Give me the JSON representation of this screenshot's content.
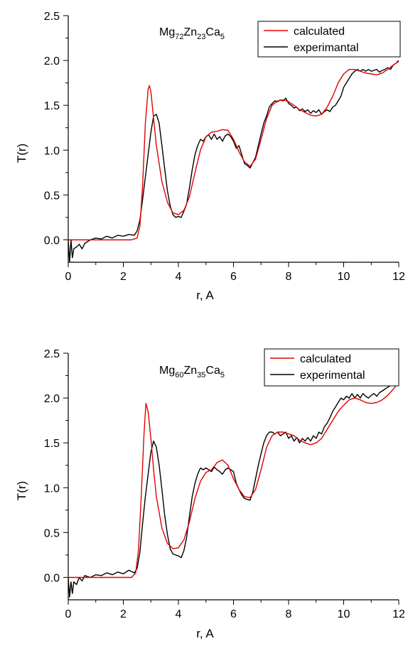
{
  "chart_data": [
    {
      "type": "line",
      "title": "",
      "annotation": {
        "base": "Mg",
        "sub1": "72",
        "el2": "Zn",
        "sub2": "23",
        "el3": "Ca",
        "sub3": "5"
      },
      "xlabel": "r, A",
      "ylabel": "T(r)",
      "xlim": [
        0,
        12
      ],
      "ylim": [
        -0.25,
        2.5
      ],
      "xticks": [
        0,
        2,
        4,
        6,
        8,
        10,
        12
      ],
      "yticks": [
        0.0,
        0.5,
        1.0,
        1.5,
        2.0,
        2.5
      ],
      "ytick_labels": [
        "0.0",
        "0.5",
        "1.0",
        "1.5",
        "2.0",
        "2.5"
      ],
      "legend_position": "top-right",
      "grid": false,
      "series": [
        {
          "name": "calculated",
          "color": "#e00000",
          "x": [
            0,
            2.3,
            2.5,
            2.6,
            2.7,
            2.8,
            2.9,
            2.95,
            3.0,
            3.1,
            3.2,
            3.4,
            3.6,
            3.8,
            4.0,
            4.2,
            4.4,
            4.6,
            4.8,
            5.0,
            5.2,
            5.4,
            5.6,
            5.8,
            6.0,
            6.2,
            6.4,
            6.6,
            6.8,
            7.0,
            7.2,
            7.4,
            7.6,
            7.8,
            8.0,
            8.2,
            8.4,
            8.6,
            8.8,
            9.0,
            9.2,
            9.4,
            9.6,
            9.8,
            10.0,
            10.2,
            10.4,
            10.6,
            10.8,
            11.0,
            11.2,
            11.4,
            11.6,
            11.8,
            12.0
          ],
          "y": [
            0.0,
            0.0,
            0.02,
            0.15,
            0.6,
            1.3,
            1.68,
            1.72,
            1.65,
            1.35,
            1.05,
            0.65,
            0.42,
            0.3,
            0.28,
            0.33,
            0.48,
            0.75,
            1.0,
            1.15,
            1.2,
            1.21,
            1.23,
            1.22,
            1.12,
            0.98,
            0.87,
            0.82,
            0.9,
            1.12,
            1.35,
            1.5,
            1.55,
            1.56,
            1.54,
            1.5,
            1.45,
            1.42,
            1.39,
            1.38,
            1.4,
            1.48,
            1.6,
            1.75,
            1.85,
            1.9,
            1.9,
            1.88,
            1.86,
            1.85,
            1.84,
            1.86,
            1.9,
            1.95,
            1.99
          ]
        },
        {
          "name": "experimantal",
          "color": "#000000",
          "x": [
            0,
            0.05,
            0.1,
            0.15,
            0.2,
            0.3,
            0.4,
            0.5,
            0.6,
            0.8,
            1.0,
            1.2,
            1.4,
            1.6,
            1.8,
            2.0,
            2.2,
            2.4,
            2.5,
            2.6,
            2.7,
            2.8,
            2.9,
            3.0,
            3.1,
            3.2,
            3.3,
            3.4,
            3.5,
            3.6,
            3.7,
            3.8,
            3.9,
            4.0,
            4.1,
            4.2,
            4.3,
            4.4,
            4.5,
            4.6,
            4.7,
            4.8,
            4.9,
            5.0,
            5.1,
            5.2,
            5.3,
            5.4,
            5.5,
            5.6,
            5.7,
            5.8,
            5.9,
            6.0,
            6.1,
            6.2,
            6.3,
            6.4,
            6.5,
            6.6,
            6.7,
            6.8,
            6.9,
            7.0,
            7.1,
            7.2,
            7.3,
            7.4,
            7.5,
            7.6,
            7.7,
            7.8,
            7.9,
            8.0,
            8.1,
            8.2,
            8.3,
            8.4,
            8.5,
            8.6,
            8.7,
            8.8,
            8.9,
            9.0,
            9.1,
            9.2,
            9.3,
            9.4,
            9.5,
            9.6,
            9.7,
            9.8,
            9.9,
            10.0,
            10.1,
            10.2,
            10.3,
            10.4,
            10.5,
            10.6,
            10.7,
            10.8,
            10.9,
            11.0,
            11.1,
            11.2,
            11.3,
            11.4,
            11.5,
            11.6,
            11.7,
            11.8,
            11.9,
            12.0
          ],
          "y": [
            0.0,
            -0.25,
            0.0,
            -0.2,
            -0.1,
            -0.08,
            -0.05,
            -0.1,
            -0.04,
            0.0,
            0.02,
            0.01,
            0.04,
            0.02,
            0.05,
            0.04,
            0.06,
            0.05,
            0.1,
            0.22,
            0.45,
            0.7,
            0.95,
            1.2,
            1.38,
            1.4,
            1.3,
            1.05,
            0.8,
            0.55,
            0.38,
            0.28,
            0.25,
            0.26,
            0.25,
            0.32,
            0.4,
            0.58,
            0.78,
            0.95,
            1.05,
            1.12,
            1.1,
            1.15,
            1.17,
            1.12,
            1.18,
            1.12,
            1.15,
            1.1,
            1.16,
            1.18,
            1.15,
            1.1,
            1.02,
            1.05,
            0.95,
            0.85,
            0.83,
            0.8,
            0.86,
            0.92,
            1.05,
            1.18,
            1.3,
            1.38,
            1.48,
            1.52,
            1.55,
            1.54,
            1.56,
            1.55,
            1.58,
            1.52,
            1.5,
            1.47,
            1.48,
            1.44,
            1.46,
            1.43,
            1.45,
            1.41,
            1.44,
            1.42,
            1.45,
            1.4,
            1.43,
            1.45,
            1.43,
            1.48,
            1.5,
            1.55,
            1.6,
            1.7,
            1.75,
            1.8,
            1.85,
            1.88,
            1.9,
            1.88,
            1.9,
            1.88,
            1.9,
            1.88,
            1.89,
            1.9,
            1.87,
            1.89,
            1.9,
            1.92,
            1.9,
            1.95,
            1.97,
            2.0
          ]
        }
      ]
    },
    {
      "type": "line",
      "title": "",
      "annotation": {
        "base": "Mg",
        "sub1": "60",
        "el2": "Zn",
        "sub2": "35",
        "el3": "Ca",
        "sub3": "5"
      },
      "xlabel": "r, A",
      "ylabel": "T(r)",
      "xlim": [
        0,
        12
      ],
      "ylim": [
        -0.25,
        2.5
      ],
      "xticks": [
        0,
        2,
        4,
        6,
        8,
        10,
        12
      ],
      "yticks": [
        0.0,
        0.5,
        1.0,
        1.5,
        2.0,
        2.5
      ],
      "ytick_labels": [
        "0.0",
        "0.5",
        "1.0",
        "1.5",
        "2.0",
        "2.5"
      ],
      "legend_position": "top-right",
      "grid": false,
      "series": [
        {
          "name": "calculated",
          "color": "#e00000",
          "x": [
            0,
            2.3,
            2.45,
            2.55,
            2.65,
            2.75,
            2.82,
            2.9,
            3.0,
            3.1,
            3.2,
            3.4,
            3.6,
            3.8,
            4.0,
            4.2,
            4.4,
            4.6,
            4.8,
            5.0,
            5.2,
            5.4,
            5.6,
            5.8,
            6.0,
            6.2,
            6.4,
            6.6,
            6.8,
            7.0,
            7.2,
            7.4,
            7.6,
            7.8,
            8.0,
            8.2,
            8.4,
            8.6,
            8.8,
            9.0,
            9.2,
            9.4,
            9.6,
            9.8,
            10.0,
            10.2,
            10.4,
            10.6,
            10.8,
            11.0,
            11.2,
            11.4,
            11.6,
            11.8,
            12.0
          ],
          "y": [
            0.0,
            0.0,
            0.05,
            0.3,
            0.9,
            1.6,
            1.94,
            1.85,
            1.55,
            1.2,
            0.9,
            0.55,
            0.38,
            0.32,
            0.33,
            0.42,
            0.62,
            0.88,
            1.07,
            1.17,
            1.2,
            1.28,
            1.31,
            1.25,
            1.1,
            0.98,
            0.9,
            0.89,
            0.98,
            1.2,
            1.45,
            1.58,
            1.62,
            1.62,
            1.6,
            1.58,
            1.53,
            1.5,
            1.48,
            1.5,
            1.55,
            1.65,
            1.75,
            1.85,
            1.92,
            1.98,
            2.0,
            1.98,
            1.95,
            1.94,
            1.95,
            1.98,
            2.03,
            2.1,
            2.18
          ]
        },
        {
          "name": "experimental",
          "color": "#000000",
          "x": [
            0,
            0.05,
            0.1,
            0.15,
            0.2,
            0.3,
            0.4,
            0.5,
            0.6,
            0.8,
            1.0,
            1.2,
            1.4,
            1.6,
            1.8,
            2.0,
            2.2,
            2.4,
            2.5,
            2.6,
            2.7,
            2.8,
            2.9,
            3.0,
            3.1,
            3.2,
            3.3,
            3.4,
            3.5,
            3.6,
            3.7,
            3.8,
            3.9,
            4.0,
            4.1,
            4.2,
            4.3,
            4.4,
            4.5,
            4.6,
            4.7,
            4.8,
            4.9,
            5.0,
            5.1,
            5.2,
            5.3,
            5.4,
            5.5,
            5.6,
            5.7,
            5.8,
            5.9,
            6.0,
            6.1,
            6.2,
            6.3,
            6.4,
            6.5,
            6.6,
            6.7,
            6.8,
            6.9,
            7.0,
            7.1,
            7.2,
            7.3,
            7.4,
            7.5,
            7.6,
            7.7,
            7.8,
            7.9,
            8.0,
            8.1,
            8.2,
            8.3,
            8.4,
            8.5,
            8.6,
            8.7,
            8.8,
            8.9,
            9.0,
            9.1,
            9.2,
            9.3,
            9.4,
            9.5,
            9.6,
            9.7,
            9.8,
            9.9,
            10.0,
            10.1,
            10.2,
            10.3,
            10.4,
            10.5,
            10.6,
            10.7,
            10.8,
            10.9,
            11.0,
            11.1,
            11.2,
            11.3,
            11.4,
            11.5,
            11.6,
            11.7,
            11.8,
            11.9,
            12.0
          ],
          "y": [
            0.0,
            -0.22,
            -0.05,
            -0.18,
            -0.05,
            -0.08,
            0.0,
            -0.04,
            0.02,
            0.0,
            0.03,
            0.02,
            0.05,
            0.03,
            0.06,
            0.04,
            0.08,
            0.05,
            0.1,
            0.28,
            0.6,
            0.9,
            1.15,
            1.4,
            1.52,
            1.45,
            1.25,
            0.98,
            0.7,
            0.48,
            0.32,
            0.26,
            0.25,
            0.24,
            0.22,
            0.3,
            0.45,
            0.68,
            0.9,
            1.05,
            1.15,
            1.22,
            1.2,
            1.22,
            1.2,
            1.18,
            1.23,
            1.2,
            1.18,
            1.15,
            1.2,
            1.22,
            1.2,
            1.18,
            1.05,
            0.98,
            0.92,
            0.88,
            0.87,
            0.86,
            0.95,
            1.1,
            1.25,
            1.38,
            1.5,
            1.58,
            1.62,
            1.62,
            1.6,
            1.62,
            1.58,
            1.6,
            1.62,
            1.55,
            1.58,
            1.52,
            1.56,
            1.5,
            1.55,
            1.52,
            1.56,
            1.52,
            1.58,
            1.55,
            1.62,
            1.6,
            1.68,
            1.72,
            1.78,
            1.85,
            1.9,
            1.95,
            2.0,
            1.98,
            2.02,
            2.0,
            2.05,
            2.0,
            2.04,
            2.0,
            2.05,
            2.02,
            2.0,
            2.03,
            2.05,
            2.02,
            2.06,
            2.08,
            2.1,
            2.12,
            2.14,
            2.15,
            2.18,
            2.2
          ]
        }
      ]
    }
  ]
}
